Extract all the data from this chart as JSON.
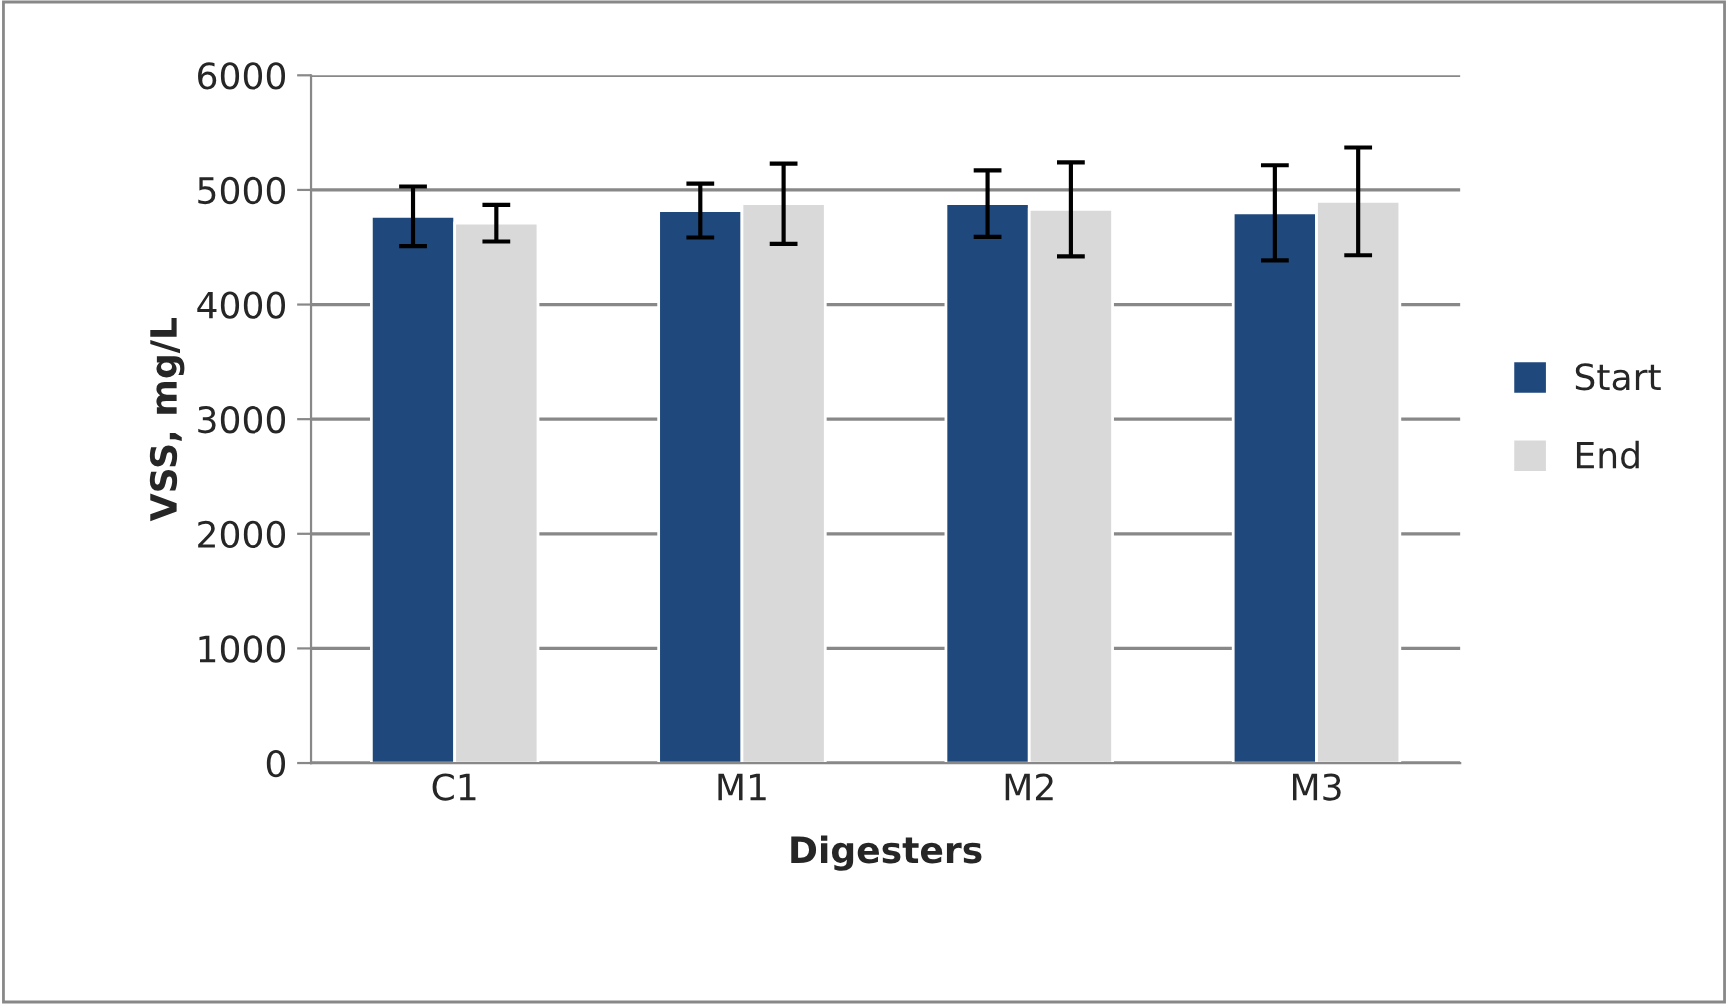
{
  "chart_data": {
    "type": "bar",
    "xlabel": "Digesters",
    "ylabel": "VSS, mg/L",
    "categories": [
      "C1",
      "M1",
      "M2",
      "M3"
    ],
    "series": [
      {
        "name": "Start",
        "color": "#1f497d",
        "values": [
          4770,
          4820,
          4880,
          4800
        ],
        "errors": [
          260,
          235,
          290,
          415
        ]
      },
      {
        "name": "End",
        "color": "#d9d9d9",
        "values": [
          4710,
          4880,
          4830,
          4900
        ],
        "errors": [
          160,
          350,
          410,
          470
        ]
      }
    ],
    "ylim": [
      0,
      6000
    ],
    "yticks": [
      0,
      1000,
      2000,
      3000,
      4000,
      5000,
      6000
    ],
    "grid": "y",
    "legend": "right"
  }
}
